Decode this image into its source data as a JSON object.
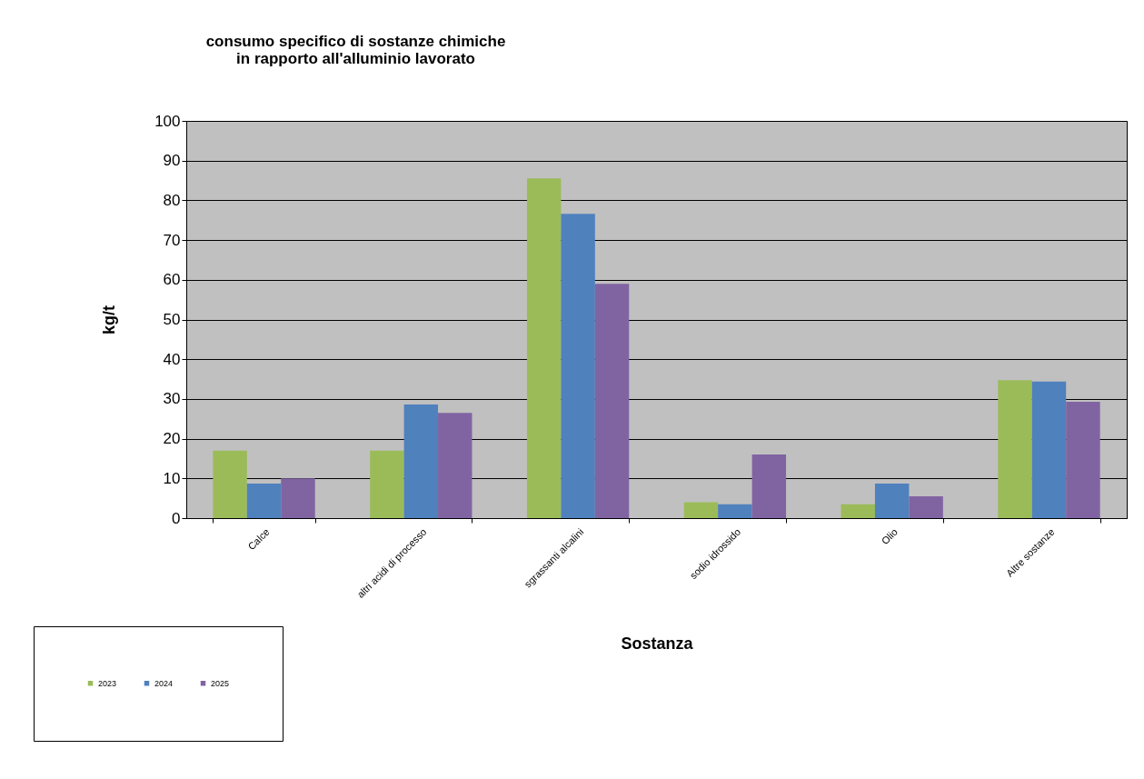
{
  "chart_data": {
    "type": "bar",
    "title": [
      "consumo specifico di sostanze chimiche",
      "in rapporto all'alluminio lavorato"
    ],
    "xlabel": "Sostanza",
    "ylabel": "kg/t",
    "categories": [
      "Calce",
      "altri acidi di processo",
      "sgrassanti alcalini",
      "sodio idrossido",
      "Olio",
      "Altre sostanze"
    ],
    "series": [
      {
        "name": "2023",
        "color": "#9bbb59",
        "values": [
          17,
          17,
          85.5,
          4,
          3.5,
          34.7
        ]
      },
      {
        "name": "2024",
        "color": "#4f81bd",
        "values": [
          8.7,
          28.6,
          76.6,
          3.5,
          8.7,
          34.4
        ]
      },
      {
        "name": "2025",
        "color": "#8064a2",
        "values": [
          10,
          26.5,
          59,
          16,
          5.5,
          29.3
        ]
      }
    ],
    "ylim": [
      0,
      100
    ],
    "yticks": [
      0,
      10,
      20,
      30,
      40,
      50,
      60,
      70,
      80,
      90,
      100
    ],
    "grid": "y",
    "legend": "bottom left"
  }
}
